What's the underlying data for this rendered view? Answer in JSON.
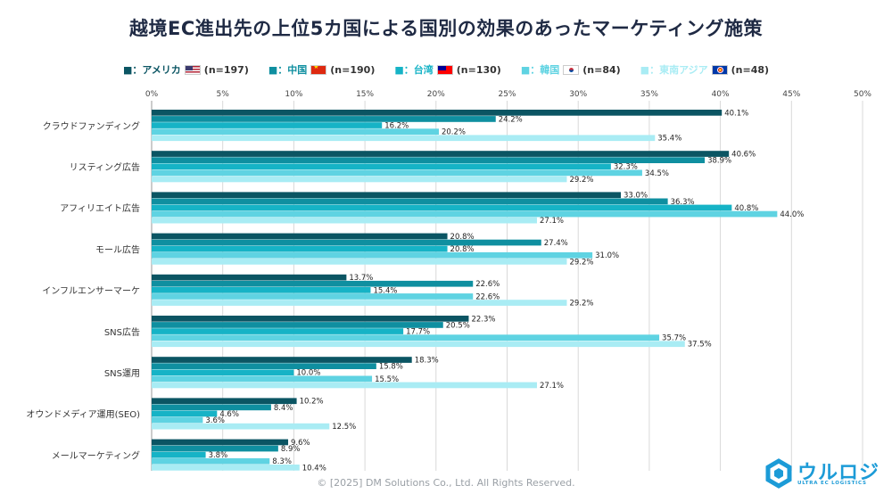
{
  "title": "越境EC進出先の上位5カ国による国別の効果のあったマーケティング施策",
  "footer": "© [2025] DM Solutions Co., Ltd. All Rights Reserved.",
  "logo": {
    "name": "ウルロジ",
    "sub": "ULTRA EC LOGISTICS"
  },
  "legend": [
    {
      "label": "■：アメリカ",
      "n": "(n=197)",
      "flag": "us"
    },
    {
      "label": "■：中国",
      "n": "(n=190)",
      "flag": "cn"
    },
    {
      "label": "■：台湾",
      "n": "(n=130)",
      "flag": "tw"
    },
    {
      "label": "■：韓国",
      "n": "(n=84)",
      "flag": "kr"
    },
    {
      "label": "■：東南アジア",
      "n": "(n=48)",
      "flag": "asean"
    }
  ],
  "chart_data": {
    "type": "bar",
    "orientation": "horizontal",
    "title": "越境EC進出先の上位5カ国による国別の効果のあったマーケティング施策",
    "categories": [
      "クラウドファンディング",
      "リスティング広告",
      "アフィリエイト広告",
      "モール広告",
      "インフルエンサーマーケ",
      "SNS広告",
      "SNS運用",
      "オウンドメディア運用(SEO)",
      "メールマーケティング"
    ],
    "series": [
      {
        "name": "アメリカ",
        "color": "#0b5563",
        "values": [
          40.1,
          40.6,
          33.0,
          20.8,
          13.7,
          22.3,
          18.3,
          10.2,
          9.6
        ]
      },
      {
        "name": "中国",
        "color": "#0f8fa0",
        "values": [
          24.2,
          38.9,
          36.3,
          27.4,
          22.6,
          20.5,
          15.8,
          8.4,
          8.9
        ]
      },
      {
        "name": "台湾",
        "color": "#16b3c6",
        "values": [
          16.2,
          32.3,
          40.8,
          20.8,
          15.4,
          17.7,
          10.0,
          4.6,
          3.8
        ]
      },
      {
        "name": "韓国",
        "color": "#5fd3e2",
        "values": [
          20.2,
          34.5,
          44.0,
          31.0,
          22.6,
          35.7,
          15.5,
          3.6,
          8.3
        ]
      },
      {
        "name": "東南アジア",
        "color": "#a9ecf4",
        "values": [
          35.4,
          29.2,
          27.1,
          29.2,
          29.2,
          37.5,
          27.1,
          12.5,
          10.4
        ]
      }
    ],
    "xlim": [
      0,
      50
    ],
    "xticks": [
      "0%",
      "5%",
      "10%",
      "15%",
      "20%",
      "25%",
      "30%",
      "35%",
      "40%",
      "45%",
      "50%"
    ],
    "grid": true,
    "legend": "top"
  }
}
